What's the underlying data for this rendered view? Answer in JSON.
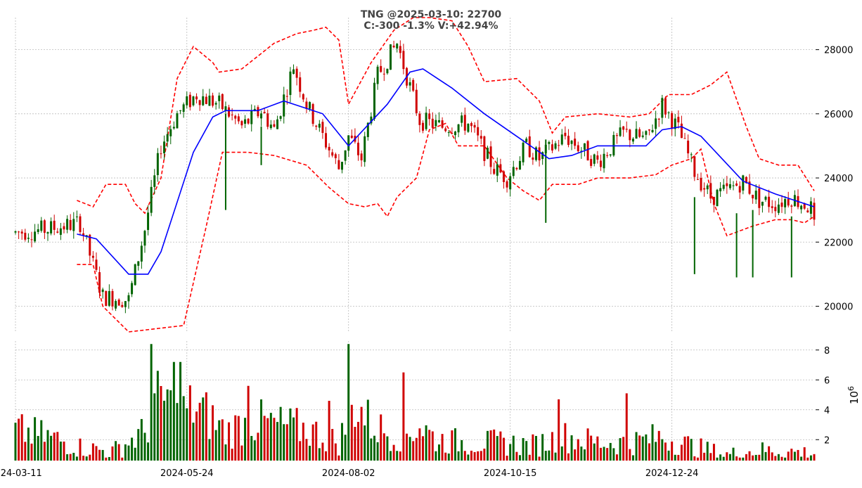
{
  "chart_data": [
    {
      "type": "candlestick",
      "title_line1": "TNG @2025-03-10: 22700",
      "title_line2": "C:-300 -1.3% V:+42.94%",
      "ylim": [
        19200,
        29000
      ],
      "y_ticks": [
        20000,
        22000,
        24000,
        26000,
        28000
      ],
      "y_tick_labels": [
        "20000",
        "22000",
        "24000",
        "26000",
        "28000"
      ],
      "x_tick_labels": [
        "2024-03-11",
        "2024-05-24",
        "2024-08-02",
        "2024-10-15",
        "2024-12-24"
      ],
      "x_tick_index": [
        0,
        53,
        103,
        153,
        203
      ],
      "grid": true,
      "colors": {
        "up": "#006400",
        "down": "#d00000",
        "sma": "#0000ff",
        "bands": "#ff0000"
      },
      "ohlc_keypoints": [
        [
          0,
          22300
        ],
        [
          10,
          22400
        ],
        [
          20,
          22600
        ],
        [
          27,
          20300
        ],
        [
          35,
          20200
        ],
        [
          40,
          22400
        ],
        [
          45,
          25000
        ],
        [
          50,
          26000
        ],
        [
          56,
          26600
        ],
        [
          63,
          26300
        ],
        [
          70,
          25600
        ],
        [
          76,
          26100
        ],
        [
          80,
          25500
        ],
        [
          86,
          27500
        ],
        [
          90,
          26300
        ],
        [
          95,
          25300
        ],
        [
          100,
          24300
        ],
        [
          103,
          25300
        ],
        [
          107,
          24600
        ],
        [
          112,
          27200
        ],
        [
          118,
          28200
        ],
        [
          125,
          25800
        ],
        [
          132,
          25600
        ],
        [
          140,
          25700
        ],
        [
          148,
          24300
        ],
        [
          152,
          24000
        ],
        [
          158,
          25000
        ],
        [
          162,
          24600
        ],
        [
          170,
          25300
        ],
        [
          180,
          24500
        ],
        [
          188,
          25400
        ],
        [
          195,
          25200
        ],
        [
          200,
          26300
        ],
        [
          205,
          25500
        ],
        [
          210,
          24200
        ],
        [
          215,
          23400
        ],
        [
          220,
          23600
        ],
        [
          225,
          23900
        ],
        [
          230,
          23300
        ],
        [
          235,
          23200
        ],
        [
          240,
          23400
        ],
        [
          247,
          23000
        ]
      ],
      "sma_keypoints": [
        [
          19,
          22250
        ],
        [
          25,
          22100
        ],
        [
          35,
          21000
        ],
        [
          41,
          21000
        ],
        [
          45,
          21700
        ],
        [
          55,
          24800
        ],
        [
          61,
          25900
        ],
        [
          65,
          26100
        ],
        [
          75,
          26100
        ],
        [
          83,
          26400
        ],
        [
          95,
          26000
        ],
        [
          103,
          25000
        ],
        [
          115,
          26300
        ],
        [
          122,
          27300
        ],
        [
          126,
          27400
        ],
        [
          135,
          26800
        ],
        [
          145,
          26000
        ],
        [
          155,
          25300
        ],
        [
          165,
          24600
        ],
        [
          172,
          24700
        ],
        [
          180,
          25000
        ],
        [
          190,
          25000
        ],
        [
          195,
          25000
        ],
        [
          200,
          25500
        ],
        [
          206,
          25600
        ],
        [
          212,
          25300
        ],
        [
          225,
          23900
        ],
        [
          235,
          23500
        ],
        [
          247,
          23100
        ]
      ],
      "upper_band_keypoints": [
        [
          19,
          23300
        ],
        [
          24,
          23100
        ],
        [
          28,
          23800
        ],
        [
          34,
          23800
        ],
        [
          37,
          23200
        ],
        [
          40,
          22900
        ],
        [
          45,
          24000
        ],
        [
          50,
          27100
        ],
        [
          55,
          28100
        ],
        [
          61,
          27600
        ],
        [
          63,
          27300
        ],
        [
          70,
          27400
        ],
        [
          80,
          28200
        ],
        [
          87,
          28500
        ],
        [
          92,
          28600
        ],
        [
          96,
          28700
        ],
        [
          100,
          28300
        ],
        [
          103,
          26300
        ],
        [
          110,
          27600
        ],
        [
          117,
          28600
        ],
        [
          123,
          29000
        ],
        [
          128,
          29000
        ],
        [
          135,
          28900
        ],
        [
          140,
          28100
        ],
        [
          145,
          27000
        ],
        [
          155,
          27100
        ],
        [
          162,
          26400
        ],
        [
          166,
          25400
        ],
        [
          170,
          25900
        ],
        [
          180,
          26000
        ],
        [
          190,
          25900
        ],
        [
          196,
          26000
        ],
        [
          202,
          26600
        ],
        [
          209,
          26600
        ],
        [
          215,
          26900
        ],
        [
          220,
          27300
        ],
        [
          226,
          25600
        ],
        [
          230,
          24600
        ],
        [
          236,
          24400
        ],
        [
          242,
          24400
        ],
        [
          247,
          23600
        ]
      ],
      "lower_band_keypoints": [
        [
          19,
          21300
        ],
        [
          24,
          21300
        ],
        [
          27,
          20000
        ],
        [
          35,
          19200
        ],
        [
          52,
          19400
        ],
        [
          59,
          22500
        ],
        [
          64,
          24800
        ],
        [
          72,
          24800
        ],
        [
          80,
          24700
        ],
        [
          90,
          24400
        ],
        [
          97,
          23700
        ],
        [
          103,
          23200
        ],
        [
          108,
          23100
        ],
        [
          112,
          23200
        ],
        [
          115,
          22800
        ],
        [
          118,
          23400
        ],
        [
          124,
          24000
        ],
        [
          128,
          25500
        ],
        [
          133,
          25700
        ],
        [
          137,
          25000
        ],
        [
          145,
          25000
        ],
        [
          152,
          24000
        ],
        [
          157,
          23600
        ],
        [
          162,
          23300
        ],
        [
          166,
          23800
        ],
        [
          174,
          23800
        ],
        [
          180,
          24000
        ],
        [
          190,
          24000
        ],
        [
          198,
          24100
        ],
        [
          203,
          24400
        ],
        [
          209,
          24600
        ],
        [
          212,
          24900
        ],
        [
          216,
          23200
        ],
        [
          220,
          22200
        ],
        [
          228,
          22500
        ],
        [
          235,
          22700
        ],
        [
          240,
          22700
        ],
        [
          244,
          22600
        ],
        [
          247,
          22800
        ]
      ]
    },
    {
      "type": "bar",
      "ylabel": "10",
      "ylabel_exponent": "6",
      "ylim": [
        0.6,
        8.6
      ],
      "y_ticks": [
        2,
        4,
        6,
        8
      ],
      "y_tick_labels": [
        "2",
        "4",
        "6",
        "8"
      ],
      "volume_keypoints": [
        [
          0,
          2.6
        ],
        [
          10,
          2.2
        ],
        [
          20,
          1.5
        ],
        [
          30,
          1.2
        ],
        [
          40,
          2.5
        ],
        [
          45,
          5.0
        ],
        [
          50,
          3.5
        ],
        [
          55,
          4.2
        ],
        [
          60,
          3.5
        ],
        [
          65,
          2.5
        ],
        [
          70,
          3.0
        ],
        [
          75,
          3.2
        ],
        [
          80,
          3.0
        ],
        [
          90,
          2.7
        ],
        [
          100,
          1.8
        ],
        [
          105,
          4.5
        ],
        [
          110,
          3.0
        ],
        [
          115,
          2.5
        ],
        [
          120,
          2.2
        ],
        [
          125,
          3.0
        ],
        [
          130,
          2.0
        ],
        [
          140,
          1.8
        ],
        [
          150,
          1.8
        ],
        [
          160,
          1.6
        ],
        [
          170,
          2.2
        ],
        [
          180,
          1.8
        ],
        [
          190,
          1.8
        ],
        [
          200,
          2.2
        ],
        [
          210,
          1.5
        ],
        [
          220,
          1.0
        ],
        [
          230,
          1.3
        ],
        [
          240,
          1.2
        ],
        [
          247,
          1.1
        ]
      ],
      "spikes": [
        [
          42,
          8.4
        ],
        [
          49,
          7.2
        ],
        [
          51,
          7.2
        ],
        [
          103,
          8.4
        ],
        [
          120,
          6.5
        ],
        [
          72,
          5.6
        ],
        [
          189,
          5.1
        ],
        [
          168,
          4.7
        ],
        [
          97,
          4.6
        ]
      ]
    }
  ]
}
